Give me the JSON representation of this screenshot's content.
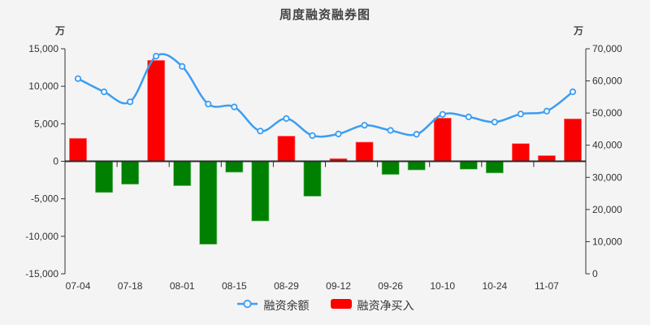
{
  "chart_data": {
    "type": "combo",
    "title": "周度融资融券图",
    "background": "#f4f4f4",
    "grid": false,
    "legend_position": "bottom",
    "categories": [
      "07-04",
      "",
      "07-18",
      "",
      "08-01",
      "",
      "08-15",
      "",
      "08-29",
      "",
      "09-12",
      "",
      "09-26",
      "",
      "10-10",
      "",
      "10-24",
      "",
      "11-07",
      ""
    ],
    "x_tick_labels": [
      "07-04",
      "07-18",
      "08-01",
      "08-15",
      "08-29",
      "09-12",
      "09-26",
      "10-10",
      "10-24",
      "11-07"
    ],
    "series": [
      {
        "name": "融资余额",
        "type": "line",
        "y_axis": "right",
        "color": "#3b9df2",
        "marker": "hollow-circle",
        "values": [
          60700,
          56600,
          53500,
          67700,
          64500,
          52800,
          51900,
          44400,
          48300,
          43000,
          43500,
          46200,
          44600,
          43400,
          49600,
          48800,
          47200,
          49700,
          50600,
          56600
        ]
      },
      {
        "name": "融资净买入",
        "type": "bar",
        "y_axis": "left",
        "color_positive": "#fb0000",
        "color_negative": "#008000",
        "values": [
          3100,
          -4200,
          -3100,
          13500,
          -3300,
          -11100,
          -1500,
          -8000,
          3400,
          -4700,
          400,
          2600,
          -1800,
          -1200,
          5800,
          -1100,
          -1600,
          2400,
          800,
          5700
        ]
      }
    ],
    "y_axis_left": {
      "unit": "万",
      "min": -15000,
      "max": 15000,
      "tick_interval": 5000,
      "tick_labels": [
        "15,000",
        "10,000",
        "5,000",
        "0",
        "-5,000",
        "-10,000",
        "-15,000"
      ]
    },
    "y_axis_right": {
      "unit": "万",
      "min": 0,
      "max": 70000,
      "tick_interval": 10000,
      "tick_labels": [
        "70,000",
        "60,000",
        "50,000",
        "40,000",
        "30,000",
        "20,000",
        "10,000",
        "0"
      ]
    },
    "axis_colors": {
      "axis_line": "#333333",
      "zero_line": "#2b2b2b",
      "tick_text": "#333333"
    }
  }
}
